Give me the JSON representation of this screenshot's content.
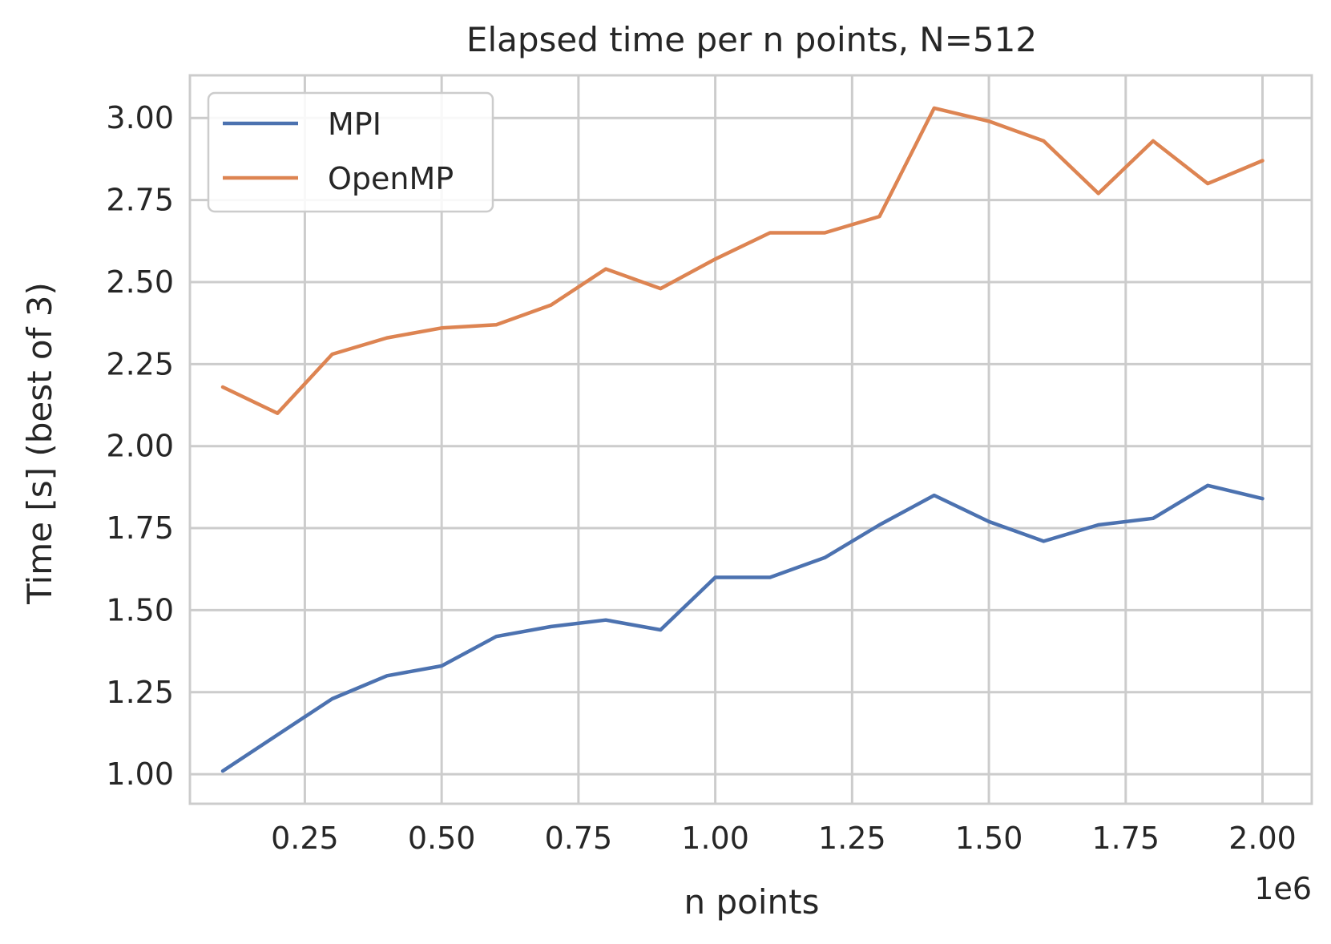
{
  "chart_data": {
    "type": "line",
    "title": "Elapsed time per n points, N=512",
    "xlabel": "n points",
    "ylabel": "Time [s] (best of 3)",
    "x_offset_label": "1e6",
    "xlim": [
      0.04,
      2.09
    ],
    "ylim": [
      0.91,
      3.13
    ],
    "x_ticks": [
      0.25,
      0.5,
      0.75,
      1.0,
      1.25,
      1.5,
      1.75,
      2.0
    ],
    "x_tick_labels": [
      "0.25",
      "0.50",
      "0.75",
      "1.00",
      "1.25",
      "1.50",
      "1.75",
      "2.00"
    ],
    "y_ticks": [
      1.0,
      1.25,
      1.5,
      1.75,
      2.0,
      2.25,
      2.5,
      2.75,
      3.0
    ],
    "y_tick_labels": [
      "1.00",
      "1.25",
      "1.50",
      "1.75",
      "2.00",
      "2.25",
      "2.50",
      "2.75",
      "3.00"
    ],
    "grid": true,
    "legend_position": "top-left",
    "x": [
      0.1,
      0.2,
      0.3,
      0.4,
      0.5,
      0.6,
      0.7,
      0.8,
      0.9,
      1.0,
      1.1,
      1.2,
      1.3,
      1.4,
      1.5,
      1.6,
      1.7,
      1.8,
      1.9,
      2.0
    ],
    "series": [
      {
        "name": "MPI",
        "color": "#4c72b0",
        "values": [
          1.01,
          1.12,
          1.23,
          1.3,
          1.33,
          1.42,
          1.45,
          1.47,
          1.44,
          1.6,
          1.6,
          1.66,
          1.76,
          1.85,
          1.77,
          1.71,
          1.76,
          1.78,
          1.88,
          1.84
        ]
      },
      {
        "name": "OpenMP",
        "color": "#dd8452",
        "values": [
          2.18,
          2.1,
          2.28,
          2.33,
          2.36,
          2.37,
          2.43,
          2.54,
          2.48,
          2.57,
          2.65,
          2.65,
          2.7,
          3.03,
          2.99,
          2.93,
          2.77,
          2.93,
          2.8,
          2.87
        ]
      }
    ]
  }
}
